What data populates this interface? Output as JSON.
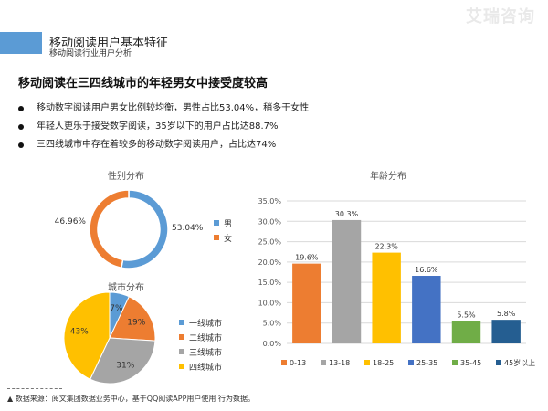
{
  "header": {
    "title": "移动阅读用户基本特征",
    "subtitle": "移动阅读行业用户分析",
    "watermark": "艾瑞咨询"
  },
  "headline": "移动阅读在三四线城市的年轻男女中接受度较高",
  "bullets": [
    "移动数字阅读用户男女比例较均衡，男性占比53.04%，稍多于女性",
    "年轻人更乐于接受数字阅读，35岁以下的用户占比达88.7%",
    "三四线城市中存在着较多的移动数字阅读用户，占比达74%"
  ],
  "colors": {
    "accent": "#5b9bd5",
    "blue": "#5b9bd5",
    "orange": "#ed7d31",
    "gray": "#a5a5a5",
    "yellow": "#ffc000",
    "darkblue": "#4472c4",
    "green": "#70ad47",
    "navy": "#255e91"
  },
  "footer": "数据来源：阅文集团数据业务中心，基于QQ阅读APP用户使用 行为数据。",
  "chart_data": [
    {
      "type": "pie",
      "variant": "donut",
      "title": "性别分布",
      "categories": [
        "男",
        "女"
      ],
      "values": [
        53.04,
        46.96
      ],
      "labels": [
        "53.04%",
        "46.96%"
      ],
      "colors": [
        "#5b9bd5",
        "#ed7d31"
      ],
      "legend": "right"
    },
    {
      "type": "pie",
      "title": "城市分布",
      "categories": [
        "一线城市",
        "二线城市",
        "三线城市",
        "四线城市"
      ],
      "values": [
        7,
        19,
        31,
        43
      ],
      "labels": [
        "7%",
        "19%",
        "31%",
        "43%"
      ],
      "colors": [
        "#5b9bd5",
        "#ed7d31",
        "#a5a5a5",
        "#ffc000"
      ],
      "legend": "right"
    },
    {
      "type": "bar",
      "title": "年龄分布",
      "categories": [
        "0-13",
        "13-18",
        "18-25",
        "25-35",
        "35-45",
        "45岁以上"
      ],
      "values": [
        19.6,
        30.3,
        22.3,
        16.6,
        5.5,
        5.8
      ],
      "labels": [
        "19.6%",
        "30.3%",
        "22.3%",
        "16.6%",
        "5.5%",
        "5.8%"
      ],
      "colors": [
        "#ed7d31",
        "#a5a5a5",
        "#ffc000",
        "#4472c4",
        "#70ad47",
        "#255e91"
      ],
      "yticks": [
        "0.0%",
        "5.0%",
        "10.0%",
        "15.0%",
        "20.0%",
        "25.0%",
        "30.0%",
        "35.0%"
      ],
      "ylim": [
        0,
        35
      ],
      "grid": true,
      "legend": "bottom"
    }
  ]
}
